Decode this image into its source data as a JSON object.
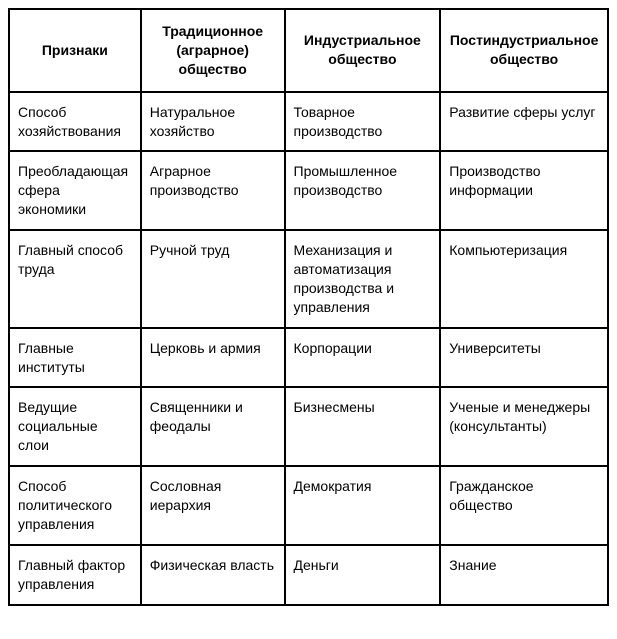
{
  "table": {
    "headers": [
      "Признаки",
      "Традиционное (аграрное) общество",
      "Индустриальное общество",
      "Постиндустриальное общество"
    ],
    "rows": [
      {
        "attr": "Способ хозяйство­вания",
        "trad": "Натуральное хозяйство",
        "ind": "Товарное производство",
        "post": "Развитие сферы услуг"
      },
      {
        "attr": "Преоблада­ющая сфера экономики",
        "trad": "Аграрное производство",
        "ind": "Промышленное производство",
        "post": "Производство информации"
      },
      {
        "attr": "Главный способ труда",
        "trad": "Ручной труд",
        "ind": "Механизация и автоматизация производства и управления",
        "post": "Компьютеризация"
      },
      {
        "attr": "Главные институты",
        "trad": "Церковь и армия",
        "ind": "Корпорации",
        "post": "Университеты"
      },
      {
        "attr": "Ведущие социальные слои",
        "trad": "Священники и феодалы",
        "ind": "Бизнесмены",
        "post": "Ученые и менеджеры (консультанты)"
      },
      {
        "attr": "Способ политичес­кого управления",
        "trad": "Сословная иерархия",
        "ind": "Демократия",
        "post": "Гражданское общество"
      },
      {
        "attr": "Главный фактор управления",
        "trad": "Физическая власть",
        "ind": "Деньги",
        "post": "Знание"
      }
    ]
  }
}
